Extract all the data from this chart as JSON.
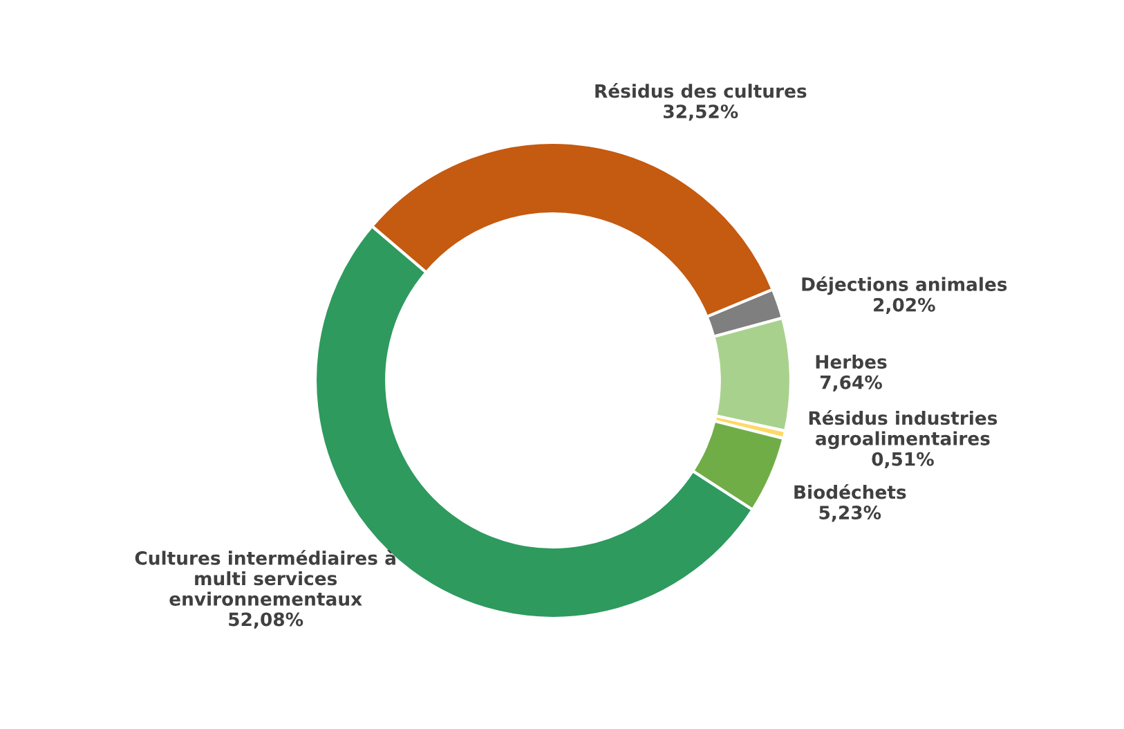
{
  "chart_data": {
    "type": "donut",
    "categories": [
      "Déjections animales",
      "Herbes",
      "Résidus industries\nagroalimentaires",
      "Biodéchets",
      "Cultures intermédiaires à\nmulti services\nenvironnementaux",
      "Résidus des cultures"
    ],
    "values": [
      2.02,
      7.64,
      0.51,
      5.23,
      52.08,
      32.52
    ],
    "value_labels": [
      "2,02%",
      "7,64%",
      "0,51%",
      "5,23%",
      "52,08%",
      "32,52%"
    ],
    "colors": [
      "#7f7f7f",
      "#a9d18e",
      "#ffd966",
      "#70ad47",
      "#2e9a5e",
      "#c55a11"
    ],
    "legend": false
  }
}
